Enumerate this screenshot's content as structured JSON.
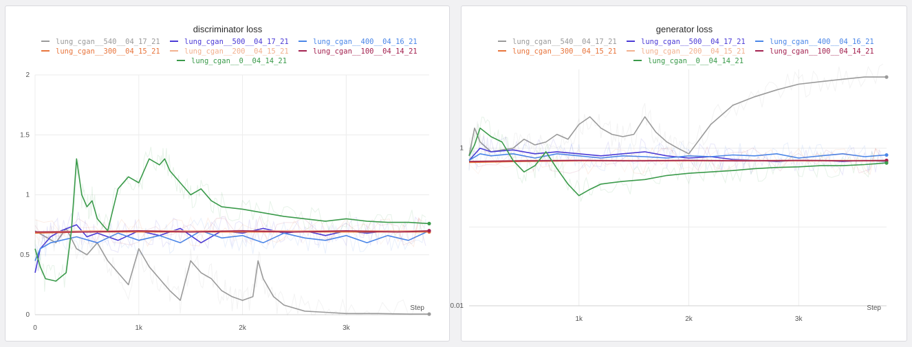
{
  "chart_data": [
    {
      "type": "line",
      "title": "discriminator loss",
      "xlabel": "Step",
      "ylabel": "",
      "xlim": [
        0,
        3800
      ],
      "ylim": [
        0,
        2.0
      ],
      "yscale": "linear",
      "xticks": [
        {
          "value": 0,
          "label": "0"
        },
        {
          "value": 1000,
          "label": "1k"
        },
        {
          "value": 2000,
          "label": "2k"
        },
        {
          "value": 3000,
          "label": "3k"
        }
      ],
      "yticks": [
        {
          "value": 0,
          "label": "0"
        },
        {
          "value": 0.5,
          "label": "0.5"
        },
        {
          "value": 1,
          "label": "1"
        },
        {
          "value": 1.5,
          "label": "1.5"
        },
        {
          "value": 2,
          "label": "2"
        }
      ],
      "grid": true,
      "legend_position": "top",
      "series": [
        {
          "name": "lung_cgan__540__04_17_21",
          "color": "#9a9a9a",
          "x": [
            0,
            100,
            200,
            300,
            400,
            500,
            600,
            700,
            800,
            900,
            1000,
            1100,
            1200,
            1300,
            1400,
            1500,
            1600,
            1700,
            1800,
            1900,
            2000,
            2100,
            2150,
            2200,
            2300,
            2400,
            2600,
            2800,
            3000,
            3300,
            3600,
            3800
          ],
          "y": [
            0.7,
            0.65,
            0.6,
            0.72,
            0.55,
            0.5,
            0.6,
            0.45,
            0.35,
            0.25,
            0.55,
            0.4,
            0.3,
            0.2,
            0.12,
            0.45,
            0.35,
            0.3,
            0.2,
            0.15,
            0.12,
            0.15,
            0.45,
            0.3,
            0.15,
            0.08,
            0.03,
            0.02,
            0.01,
            0.01,
            0.005,
            0.005
          ]
        },
        {
          "name": "lung_cgan__500__04_17_21",
          "color": "#4a3ad6",
          "x": [
            0,
            50,
            150,
            250,
            400,
            500,
            600,
            800,
            1000,
            1200,
            1400,
            1600,
            1800,
            2000,
            2200,
            2400,
            2600,
            2800,
            3000,
            3200,
            3400,
            3600,
            3800
          ],
          "y": [
            0.35,
            0.55,
            0.65,
            0.7,
            0.75,
            0.65,
            0.68,
            0.62,
            0.7,
            0.66,
            0.72,
            0.6,
            0.7,
            0.68,
            0.72,
            0.68,
            0.7,
            0.66,
            0.7,
            0.68,
            0.7,
            0.69,
            0.7
          ]
        },
        {
          "name": "lung_cgan__400__04_16_21",
          "color": "#4a86e8",
          "x": [
            0,
            50,
            150,
            250,
            400,
            600,
            800,
            1000,
            1200,
            1400,
            1600,
            1800,
            2000,
            2200,
            2400,
            2600,
            2800,
            3000,
            3200,
            3400,
            3600,
            3800
          ],
          "y": [
            0.45,
            0.55,
            0.6,
            0.62,
            0.65,
            0.6,
            0.68,
            0.62,
            0.66,
            0.6,
            0.7,
            0.64,
            0.66,
            0.6,
            0.68,
            0.64,
            0.62,
            0.66,
            0.6,
            0.66,
            0.62,
            0.7
          ]
        },
        {
          "name": "lung_cgan__300__04_15_21",
          "color": "#e8743b",
          "x": [
            0,
            500,
            1000,
            1500,
            2000,
            2500,
            3000,
            3500,
            3800
          ],
          "y": [
            0.68,
            0.69,
            0.69,
            0.69,
            0.69,
            0.69,
            0.69,
            0.69,
            0.69
          ]
        },
        {
          "name": "lung_cgan__200__04_15_21",
          "color": "#f2b08e",
          "x": [
            0,
            500,
            1000,
            1500,
            2000,
            2500,
            3000,
            3500,
            3800
          ],
          "y": [
            0.69,
            0.7,
            0.7,
            0.7,
            0.7,
            0.7,
            0.7,
            0.7,
            0.7
          ]
        },
        {
          "name": "lung_cgan__100__04_14_21",
          "color": "#a3214f",
          "x": [
            0,
            500,
            1000,
            1500,
            2000,
            2500,
            3000,
            3500,
            3800
          ],
          "y": [
            0.69,
            0.69,
            0.7,
            0.69,
            0.7,
            0.69,
            0.7,
            0.69,
            0.7
          ]
        },
        {
          "name": "lung_cgan__0__04_14_21",
          "color": "#3a9a4a",
          "x": [
            0,
            50,
            100,
            200,
            300,
            350,
            400,
            450,
            500,
            550,
            600,
            700,
            800,
            900,
            1000,
            1100,
            1200,
            1250,
            1300,
            1400,
            1500,
            1600,
            1700,
            1800,
            2000,
            2200,
            2400,
            2600,
            2800,
            3000,
            3200,
            3400,
            3600,
            3800
          ],
          "y": [
            0.55,
            0.4,
            0.3,
            0.28,
            0.35,
            0.7,
            1.3,
            1.0,
            0.9,
            0.95,
            0.8,
            0.7,
            1.05,
            1.15,
            1.1,
            1.3,
            1.25,
            1.3,
            1.2,
            1.1,
            1.0,
            1.05,
            0.95,
            0.9,
            0.88,
            0.85,
            0.82,
            0.8,
            0.78,
            0.8,
            0.78,
            0.77,
            0.77,
            0.76
          ]
        }
      ]
    },
    {
      "type": "line",
      "title": "generator loss",
      "xlabel": "Step",
      "ylabel": "",
      "xlim": [
        0,
        3800
      ],
      "ylim": [
        0.01,
        10
      ],
      "yscale": "log",
      "xticks": [
        {
          "value": 1000,
          "label": "1k"
        },
        {
          "value": 2000,
          "label": "2k"
        },
        {
          "value": 3000,
          "label": "3k"
        }
      ],
      "yticks": [
        {
          "value": 0.01,
          "label": "0.01"
        },
        {
          "value": 1,
          "label": "1"
        }
      ],
      "grid": true,
      "legend_position": "top",
      "series": [
        {
          "name": "lung_cgan__540__04_17_21",
          "color": "#9a9a9a",
          "x": [
            0,
            50,
            100,
            200,
            300,
            400,
            500,
            600,
            700,
            800,
            900,
            1000,
            1100,
            1200,
            1300,
            1400,
            1500,
            1600,
            1700,
            1800,
            1900,
            2000,
            2200,
            2400,
            2600,
            2800,
            3000,
            3200,
            3400,
            3600,
            3800
          ],
          "y": [
            0.8,
            1.8,
            1.2,
            0.9,
            0.95,
            1.0,
            1.3,
            1.1,
            1.2,
            1.5,
            1.3,
            2.0,
            2.5,
            1.8,
            1.5,
            1.4,
            1.5,
            2.5,
            1.6,
            1.2,
            1.0,
            0.85,
            2.0,
            3.5,
            4.5,
            5.5,
            6.5,
            7.0,
            7.5,
            8.0,
            8.0
          ]
        },
        {
          "name": "lung_cgan__500__04_17_21",
          "color": "#4a3ad6",
          "x": [
            0,
            100,
            200,
            400,
            600,
            800,
            1000,
            1200,
            1400,
            1600,
            1800,
            2000,
            2200,
            2400,
            2600,
            2800,
            3000,
            3200,
            3400,
            3600,
            3800
          ],
          "y": [
            0.7,
            1.0,
            0.9,
            0.95,
            0.85,
            0.9,
            0.85,
            0.8,
            0.85,
            0.9,
            0.8,
            0.75,
            0.78,
            0.72,
            0.7,
            0.68,
            0.7,
            0.7,
            0.68,
            0.7,
            0.68
          ]
        },
        {
          "name": "lung_cgan__400__04_16_21",
          "color": "#4a86e8",
          "x": [
            0,
            100,
            200,
            400,
            600,
            800,
            1000,
            1200,
            1400,
            1600,
            1800,
            2000,
            2200,
            2400,
            2600,
            2800,
            3000,
            3200,
            3400,
            3600,
            3800
          ],
          "y": [
            0.7,
            0.85,
            0.8,
            0.85,
            0.75,
            0.85,
            0.8,
            0.75,
            0.8,
            0.78,
            0.75,
            0.8,
            0.78,
            0.82,
            0.8,
            0.85,
            0.75,
            0.8,
            0.85,
            0.78,
            0.82
          ]
        },
        {
          "name": "lung_cgan__300__04_15_21",
          "color": "#e8743b",
          "x": [
            0,
            500,
            1000,
            1500,
            2000,
            2500,
            3000,
            3500,
            3800
          ],
          "y": [
            0.66,
            0.68,
            0.69,
            0.69,
            0.69,
            0.69,
            0.69,
            0.69,
            0.69
          ]
        },
        {
          "name": "lung_cgan__200__04_15_21",
          "color": "#f2b08e",
          "x": [
            0,
            500,
            1000,
            1500,
            2000,
            2500,
            3000,
            3500,
            3800
          ],
          "y": [
            0.68,
            0.7,
            0.7,
            0.7,
            0.7,
            0.7,
            0.7,
            0.7,
            0.7
          ]
        },
        {
          "name": "lung_cgan__100__04_14_21",
          "color": "#a3214f",
          "x": [
            0,
            500,
            1000,
            1500,
            2000,
            2500,
            3000,
            3500,
            3800
          ],
          "y": [
            0.68,
            0.69,
            0.7,
            0.69,
            0.7,
            0.69,
            0.7,
            0.69,
            0.7
          ]
        },
        {
          "name": "lung_cgan__0__04_14_21",
          "color": "#3a9a4a",
          "x": [
            0,
            50,
            100,
            200,
            300,
            400,
            500,
            600,
            700,
            800,
            900,
            1000,
            1100,
            1200,
            1400,
            1600,
            1800,
            2000,
            2200,
            2400,
            2600,
            2800,
            3000,
            3200,
            3400,
            3600,
            3800
          ],
          "y": [
            0.8,
            1.1,
            1.8,
            1.4,
            1.2,
            0.7,
            0.5,
            0.6,
            0.9,
            0.55,
            0.35,
            0.25,
            0.3,
            0.35,
            0.38,
            0.4,
            0.45,
            0.48,
            0.5,
            0.52,
            0.55,
            0.57,
            0.58,
            0.6,
            0.6,
            0.62,
            0.65
          ]
        }
      ]
    }
  ]
}
